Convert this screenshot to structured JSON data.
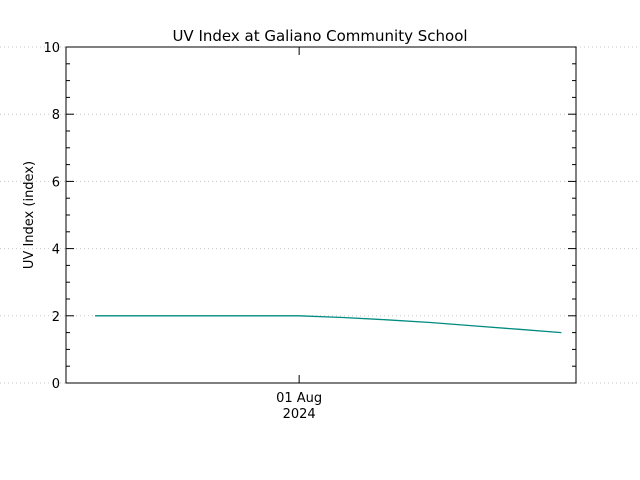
{
  "chart_data": {
    "type": "line",
    "title": "UV Index at Galiano Community School",
    "ylabel": "UV Index (index)",
    "xlabel": "",
    "x_tick_labels": [
      {
        "x": "2024-08-01T00:00",
        "line1": "01 Aug",
        "line2": "2024"
      }
    ],
    "xlim": [
      "2024-07-31T08:00",
      "2024-08-01T19:00"
    ],
    "ylim": [
      0,
      10
    ],
    "y_ticks": [
      "0",
      "2",
      "4",
      "6",
      "8",
      "10"
    ],
    "grid": "horizontal dotted",
    "colors": {
      "series": "#008b80",
      "axes": "#000000",
      "grid": "#c8c8c8"
    },
    "series": [
      {
        "x": [
          "2024-07-31T10:00",
          "2024-07-31T13:00",
          "2024-07-31T16:00",
          "2024-07-31T19:00",
          "2024-07-31T22:00",
          "2024-08-01T00:00",
          "2024-08-01T03:00",
          "2024-08-01T06:00",
          "2024-08-01T09:00",
          "2024-08-01T12:00",
          "2024-08-01T15:00",
          "2024-08-01T18:00"
        ],
        "values": [
          2.0,
          2.0,
          2.0,
          2.0,
          2.0,
          2.0,
          1.95,
          1.88,
          1.8,
          1.7,
          1.6,
          1.5
        ]
      }
    ]
  }
}
